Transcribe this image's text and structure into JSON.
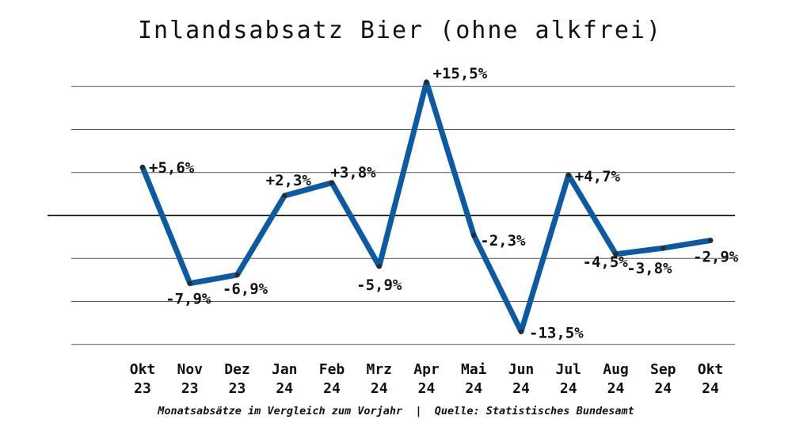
{
  "chart_data": {
    "type": "line",
    "title": "Inlandsabsatz Bier (ohne alkfrei)",
    "footer": "Monatsabsätze im Vergleich zum Vorjahr  |  Quelle: Statistisches Bundesamt",
    "categories": [
      "Okt 23",
      "Nov 23",
      "Dez 23",
      "Jan 24",
      "Feb 24",
      "Mrz 24",
      "Apr 24",
      "Mai 24",
      "Jun 24",
      "Jul 24",
      "Aug 24",
      "Sep 24",
      "Okt 24"
    ],
    "x_top": [
      "Okt",
      "Nov",
      "Dez",
      "Jan",
      "Feb",
      "Mrz",
      "Apr",
      "Mai",
      "Jun",
      "Jul",
      "Aug",
      "Sep",
      "Okt"
    ],
    "x_bottom": [
      "23",
      "23",
      "23",
      "24",
      "24",
      "24",
      "24",
      "24",
      "24",
      "24",
      "24",
      "24",
      "24"
    ],
    "values": [
      5.6,
      -7.9,
      -6.9,
      2.3,
      3.8,
      -5.9,
      15.5,
      -2.3,
      -13.5,
      4.7,
      -4.5,
      -3.8,
      -2.9
    ],
    "data_labels": [
      "+5,6%",
      "-7,9%",
      "-6,9%",
      "+2,3%",
      "+3,8%",
      "-5,9%",
      "+15,5%",
      "-2,3%",
      "-13,5%",
      "+4,7%",
      "-4,5%",
      "-3,8%",
      "-2,9%"
    ],
    "ylim": [
      -15.5,
      17
    ],
    "gridlines": [
      -15,
      -10,
      -5,
      5,
      10,
      15
    ],
    "grid": true,
    "legend": "none",
    "colors": {
      "line": "#0b5aa6",
      "marker": "#2b2b2b"
    }
  }
}
